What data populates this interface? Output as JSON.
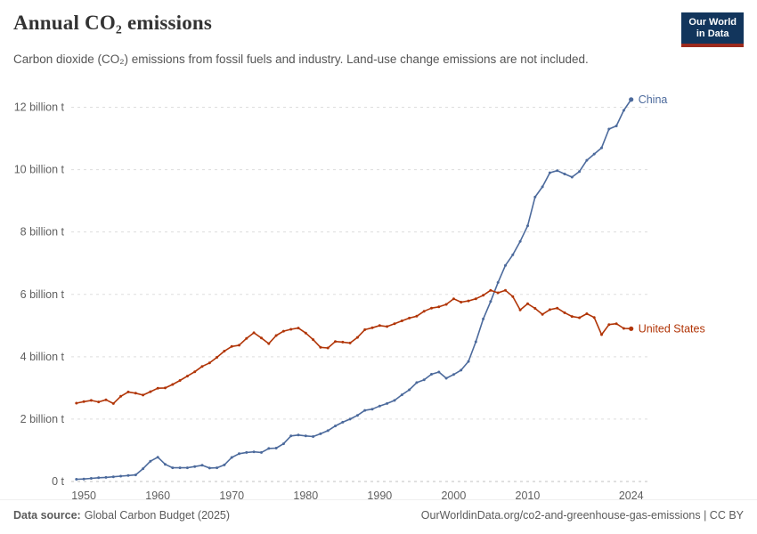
{
  "header": {
    "title": "Annual CO₂ emissions",
    "subtitle": "Carbon dioxide (CO₂) emissions from fossil fuels and industry. Land-use change emissions are not included.",
    "logo": {
      "line1": "Our World",
      "line2": "in Data"
    }
  },
  "chart_data": {
    "type": "line",
    "title": "Annual CO₂ emissions",
    "xlabel": "",
    "ylabel": "",
    "xlim": [
      1948.3,
      2026.2
    ],
    "ylim": [
      0,
      12.5
    ],
    "grid": "horizontal-dashed",
    "legend_position": "end-of-line-labels",
    "xticks": [
      1950,
      1960,
      1970,
      1980,
      1990,
      2000,
      2010,
      2024
    ],
    "yticks": [
      0,
      2,
      4,
      6,
      8,
      10,
      12
    ],
    "ytick_labels": [
      "0 t",
      "2 billion t",
      "4 billion t",
      "6 billion t",
      "8 billion t",
      "10 billion t",
      "12 billion t"
    ],
    "x": [
      1949,
      1950,
      1951,
      1952,
      1953,
      1954,
      1955,
      1956,
      1957,
      1958,
      1959,
      1960,
      1961,
      1962,
      1963,
      1964,
      1965,
      1966,
      1967,
      1968,
      1969,
      1970,
      1971,
      1972,
      1973,
      1974,
      1975,
      1976,
      1977,
      1978,
      1979,
      1980,
      1981,
      1982,
      1983,
      1984,
      1985,
      1986,
      1987,
      1988,
      1989,
      1990,
      1991,
      1992,
      1993,
      1994,
      1995,
      1996,
      1997,
      1998,
      1999,
      2000,
      2001,
      2002,
      2003,
      2004,
      2005,
      2006,
      2007,
      2008,
      2009,
      2010,
      2011,
      2012,
      2013,
      2014,
      2015,
      2016,
      2017,
      2018,
      2019,
      2020,
      2021,
      2022,
      2023,
      2024
    ],
    "unit": "billion t",
    "series": [
      {
        "id": "china",
        "name": "China",
        "color": "#4C6A9C",
        "values": [
          0.07,
          0.08,
          0.1,
          0.12,
          0.13,
          0.15,
          0.17,
          0.19,
          0.21,
          0.41,
          0.65,
          0.78,
          0.55,
          0.44,
          0.44,
          0.44,
          0.48,
          0.52,
          0.43,
          0.44,
          0.53,
          0.77,
          0.89,
          0.93,
          0.95,
          0.93,
          1.06,
          1.07,
          1.21,
          1.46,
          1.49,
          1.46,
          1.44,
          1.53,
          1.63,
          1.78,
          1.9,
          2.0,
          2.12,
          2.28,
          2.32,
          2.42,
          2.5,
          2.6,
          2.78,
          2.94,
          3.17,
          3.26,
          3.44,
          3.51,
          3.31,
          3.43,
          3.57,
          3.85,
          4.48,
          5.21,
          5.77,
          6.38,
          6.93,
          7.27,
          7.7,
          8.2,
          9.12,
          9.45,
          9.9,
          9.97,
          9.86,
          9.76,
          9.94,
          10.3,
          10.5,
          10.7,
          11.3,
          11.4,
          11.9,
          12.25
        ]
      },
      {
        "id": "united-states",
        "name": "United States",
        "color": "#B13507",
        "values": [
          2.51,
          2.56,
          2.6,
          2.55,
          2.62,
          2.5,
          2.73,
          2.87,
          2.83,
          2.77,
          2.88,
          2.99,
          3.0,
          3.11,
          3.24,
          3.38,
          3.52,
          3.69,
          3.8,
          3.98,
          4.18,
          4.33,
          4.37,
          4.59,
          4.77,
          4.6,
          4.42,
          4.68,
          4.82,
          4.88,
          4.92,
          4.76,
          4.55,
          4.3,
          4.28,
          4.49,
          4.47,
          4.44,
          4.62,
          4.87,
          4.93,
          5.0,
          4.97,
          5.06,
          5.15,
          5.24,
          5.3,
          5.46,
          5.56,
          5.6,
          5.68,
          5.86,
          5.75,
          5.79,
          5.86,
          5.97,
          6.13,
          6.05,
          6.13,
          5.93,
          5.5,
          5.7,
          5.55,
          5.36,
          5.51,
          5.56,
          5.41,
          5.29,
          5.25,
          5.38,
          5.26,
          4.71,
          5.03,
          5.06,
          4.91,
          4.9
        ]
      }
    ]
  },
  "footer": {
    "source_label": "Data source:",
    "source": "Global Carbon Budget (2025)",
    "link": "OurWorldinData.org/co2-and-greenhouse-gas-emissions | CC BY"
  }
}
